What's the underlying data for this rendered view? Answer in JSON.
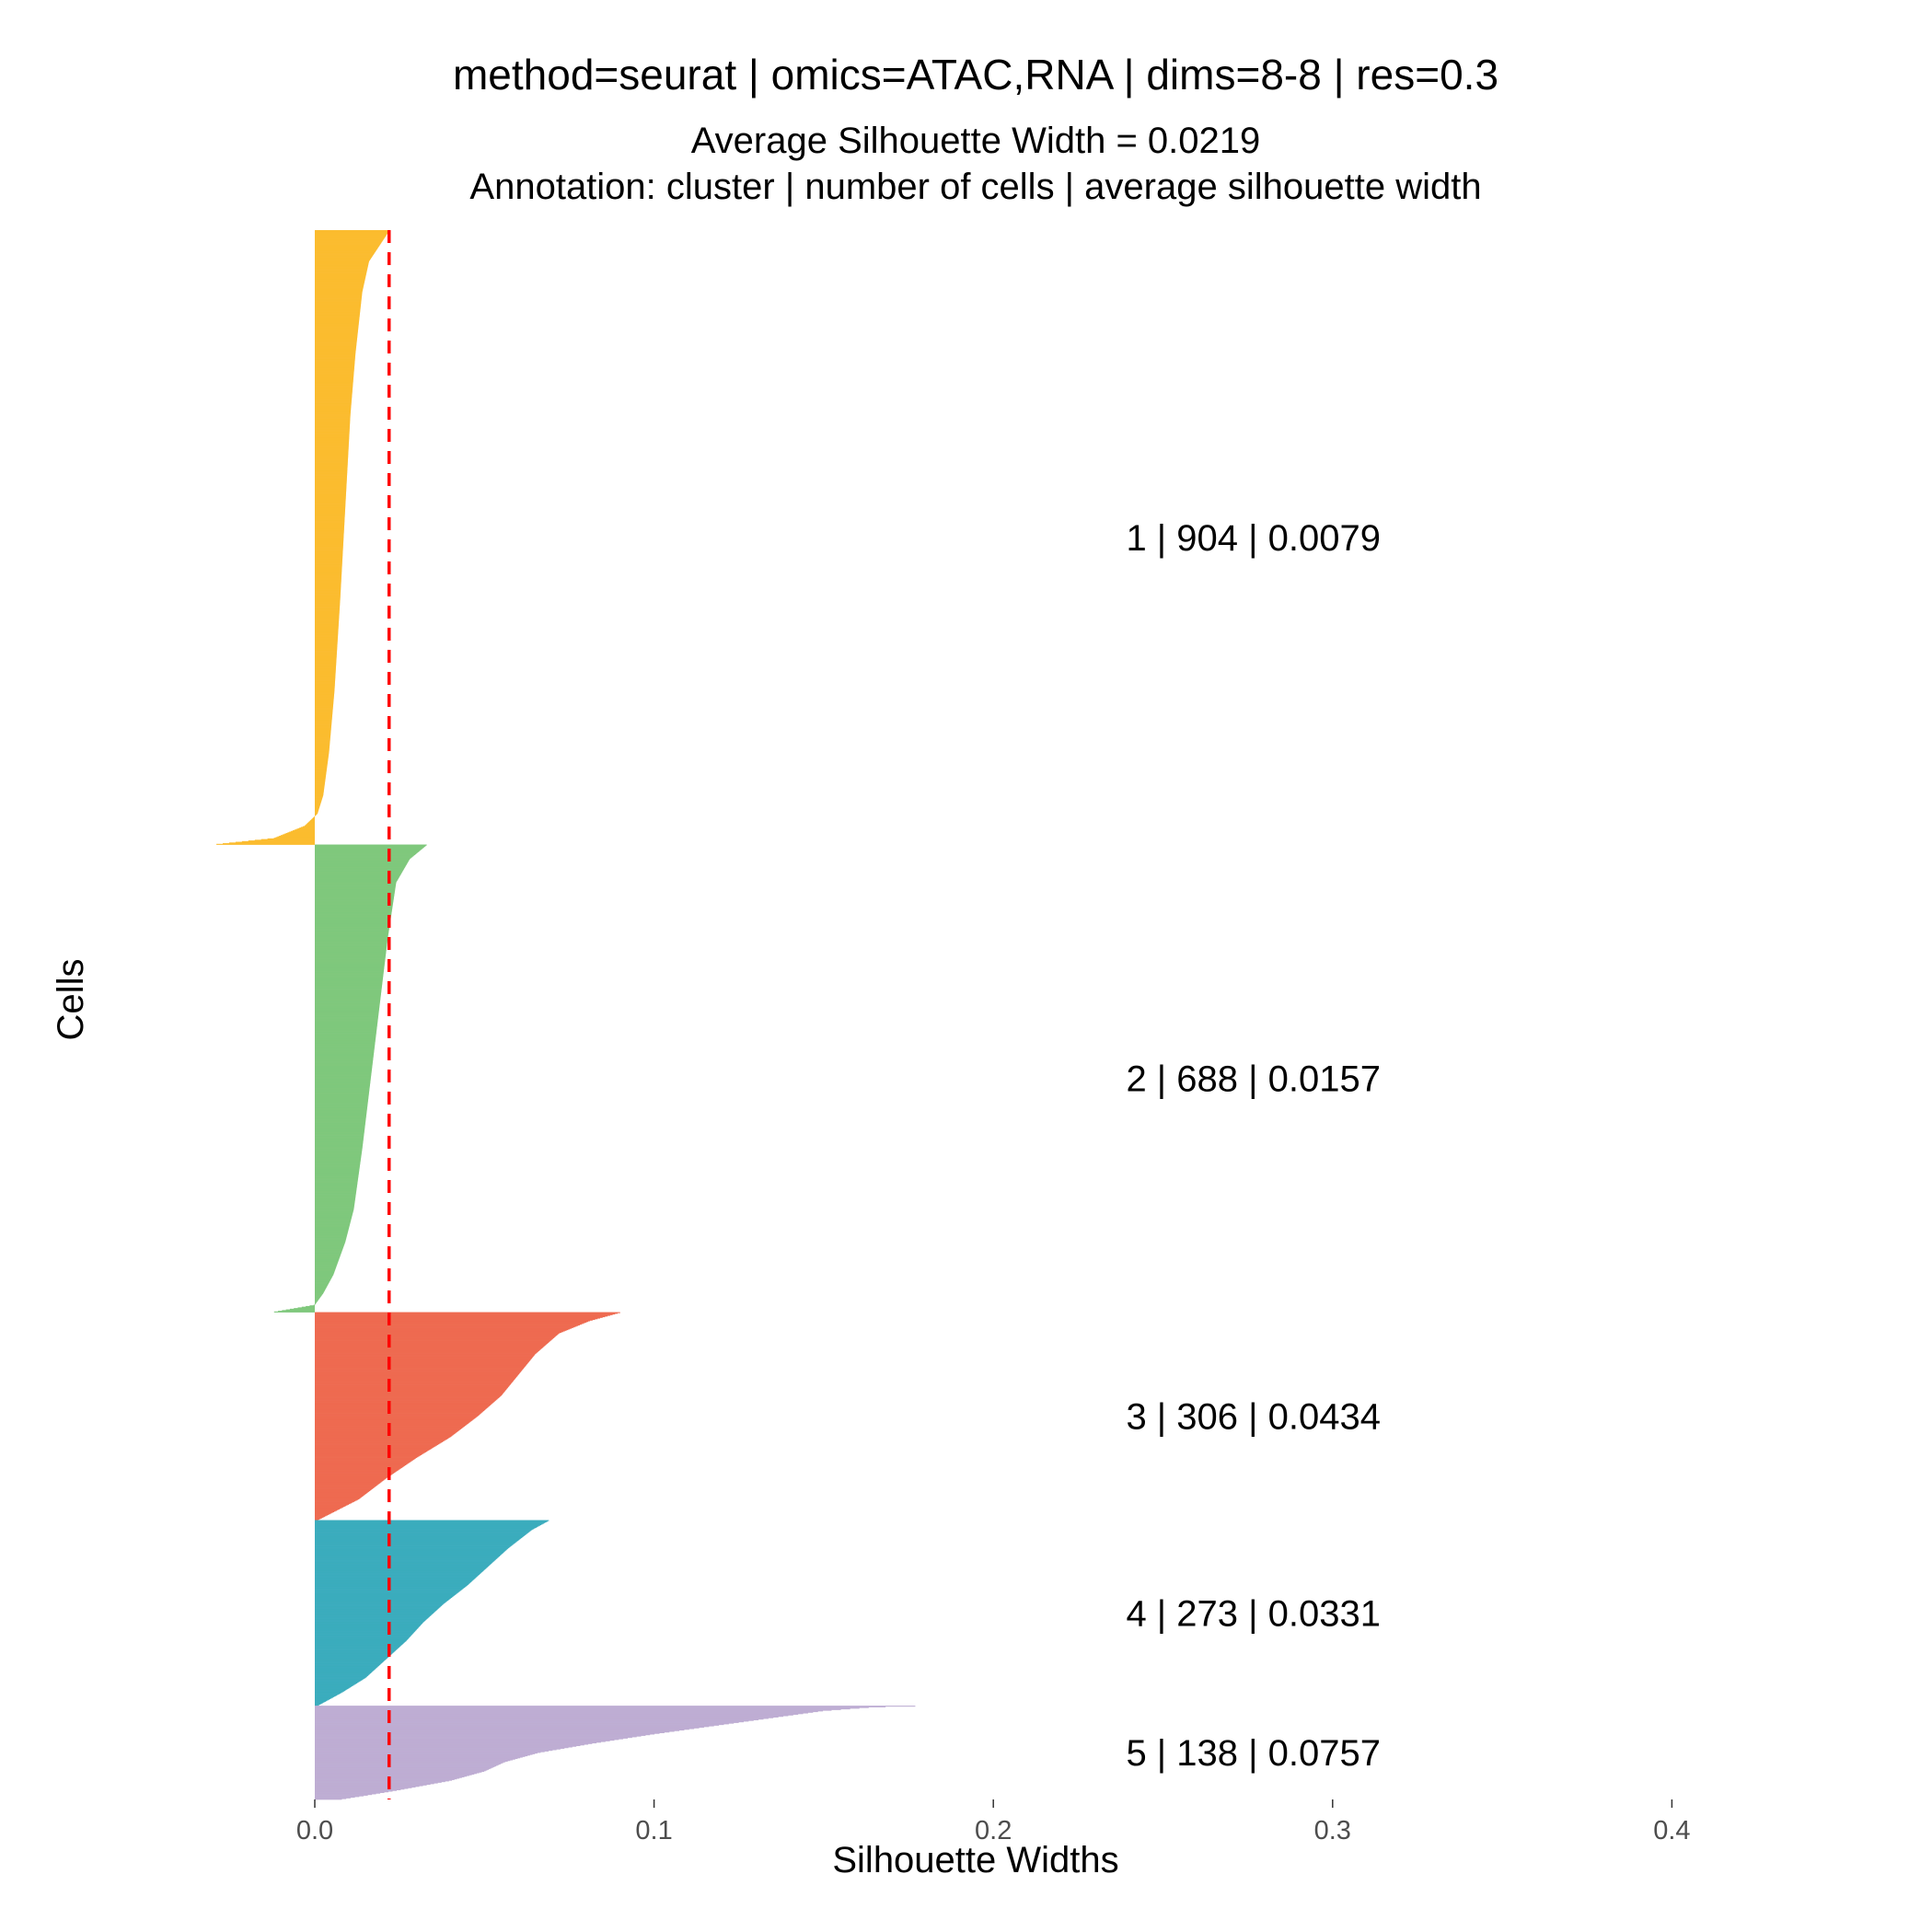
{
  "chart_data": {
    "type": "bar",
    "orientation": "horizontal",
    "title": "method=seurat | omics=ATAC,RNA | dims=8-8 | res=0.3",
    "subtitle_lines": [
      "Average Silhouette Width = 0.0219",
      "Annotation: cluster | number of cells | average silhouette width"
    ],
    "xlabel": "Silhouette Widths",
    "ylabel": "Cells",
    "xlim": [
      -0.029,
      0.43
    ],
    "xticks": [
      0.0,
      0.1,
      0.2,
      0.3,
      0.4
    ],
    "xtick_labels": [
      "0.0",
      "0.1",
      "0.2",
      "0.3",
      "0.4"
    ],
    "average_silhouette_width": 0.0219,
    "reference_line": {
      "x": 0.0219,
      "color": "#ff0000",
      "style": "dashed"
    },
    "grid": false,
    "legend": "none",
    "clusters": [
      {
        "cluster": "1",
        "n_cells": 904,
        "avg_width": 0.0079,
        "color": "#FBBC2F",
        "annotation": "1 | 904 | 0.0079",
        "profile": [
          [
            0,
            0.022
          ],
          [
            0.05,
            0.016
          ],
          [
            0.1,
            0.014
          ],
          [
            0.2,
            0.012
          ],
          [
            0.3,
            0.0105
          ],
          [
            0.45,
            0.009
          ],
          [
            0.6,
            0.0075
          ],
          [
            0.75,
            0.0058
          ],
          [
            0.85,
            0.0042
          ],
          [
            0.92,
            0.0025
          ],
          [
            0.95,
            0.0008
          ],
          [
            0.97,
            -0.003
          ],
          [
            0.99,
            -0.012
          ],
          [
            1.0,
            -0.029
          ]
        ]
      },
      {
        "cluster": "2",
        "n_cells": 688,
        "avg_width": 0.0157,
        "color": "#7FC87C",
        "annotation": "2 | 688 | 0.0157",
        "profile": [
          [
            0,
            0.033
          ],
          [
            0.03,
            0.028
          ],
          [
            0.08,
            0.024
          ],
          [
            0.2,
            0.0215
          ],
          [
            0.35,
            0.019
          ],
          [
            0.5,
            0.0165
          ],
          [
            0.65,
            0.014
          ],
          [
            0.78,
            0.0115
          ],
          [
            0.85,
            0.009
          ],
          [
            0.92,
            0.0055
          ],
          [
            0.96,
            0.0025
          ],
          [
            0.985,
            0.0
          ],
          [
            1.0,
            -0.012
          ]
        ]
      },
      {
        "cluster": "3",
        "n_cells": 306,
        "avg_width": 0.0434,
        "color": "#EE6A50",
        "annotation": "3 | 306 | 0.0434",
        "profile": [
          [
            0,
            0.09
          ],
          [
            0.04,
            0.081
          ],
          [
            0.1,
            0.072
          ],
          [
            0.2,
            0.065
          ],
          [
            0.3,
            0.06
          ],
          [
            0.4,
            0.055
          ],
          [
            0.5,
            0.048
          ],
          [
            0.6,
            0.04
          ],
          [
            0.65,
            0.035
          ],
          [
            0.7,
            0.03
          ],
          [
            0.8,
            0.021
          ],
          [
            0.9,
            0.013
          ],
          [
            0.95,
            0.007
          ],
          [
            1.0,
            0.001
          ]
        ]
      },
      {
        "cluster": "4",
        "n_cells": 273,
        "avg_width": 0.0331,
        "color": "#3BACBD",
        "annotation": "4 | 273 | 0.0331",
        "profile": [
          [
            0,
            0.069
          ],
          [
            0.05,
            0.064
          ],
          [
            0.15,
            0.057
          ],
          [
            0.25,
            0.051
          ],
          [
            0.35,
            0.045
          ],
          [
            0.45,
            0.038
          ],
          [
            0.55,
            0.032
          ],
          [
            0.65,
            0.027
          ],
          [
            0.75,
            0.021
          ],
          [
            0.85,
            0.015
          ],
          [
            0.93,
            0.008
          ],
          [
            1.0,
            0.001
          ]
        ]
      },
      {
        "cluster": "5",
        "n_cells": 138,
        "avg_width": 0.0757,
        "color": "#BEADD3",
        "annotation": "5 | 138 | 0.0757",
        "profile": [
          [
            0,
            0.177
          ],
          [
            0.01,
            0.165
          ],
          [
            0.05,
            0.15
          ],
          [
            0.12,
            0.136
          ],
          [
            0.2,
            0.12
          ],
          [
            0.3,
            0.1
          ],
          [
            0.4,
            0.082
          ],
          [
            0.5,
            0.066
          ],
          [
            0.6,
            0.056
          ],
          [
            0.7,
            0.05
          ],
          [
            0.8,
            0.04
          ],
          [
            0.9,
            0.025
          ],
          [
            0.96,
            0.015
          ],
          [
            1.0,
            0.008
          ]
        ]
      }
    ]
  }
}
